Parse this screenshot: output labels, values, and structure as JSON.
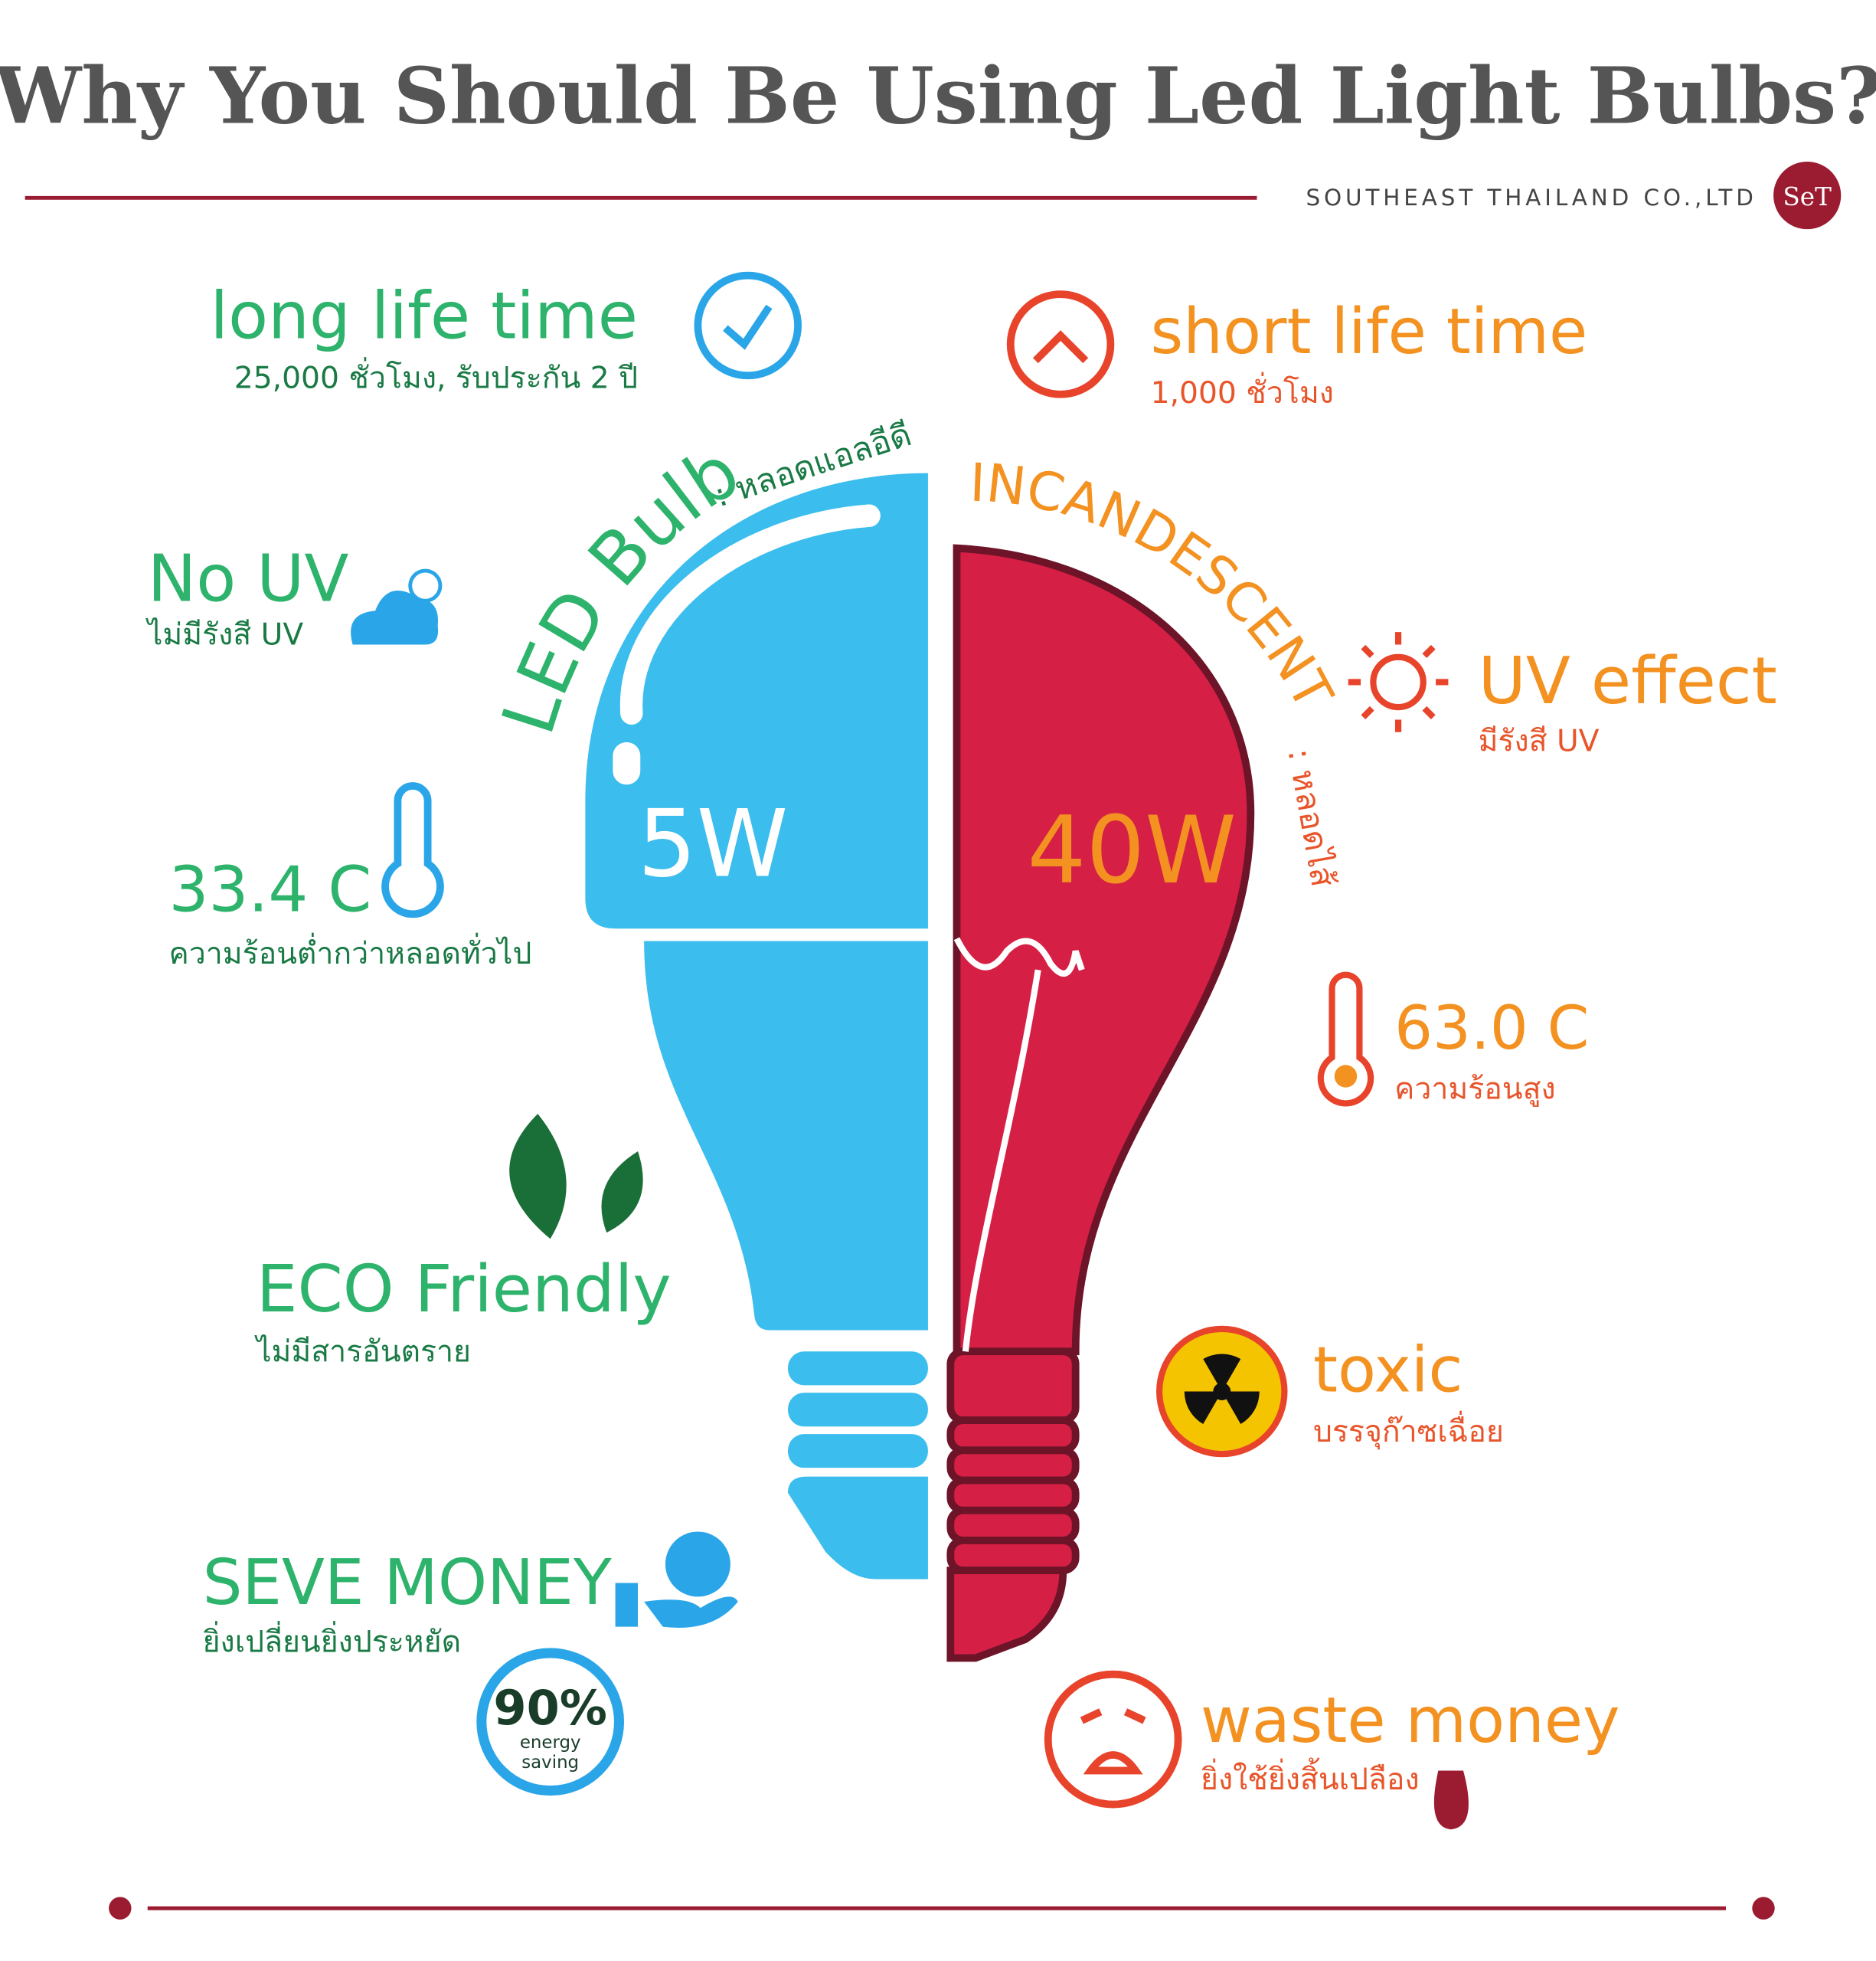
{
  "header": {
    "title": "Why You Should Be Using Led Light Bulbs?",
    "company": "SOUTHEAST THAILAND CO.,LTD",
    "logo": "SeT"
  },
  "led": {
    "label": "LED Bulb",
    "thai": ": หลอดแอลอีดี",
    "watt": "5W",
    "features": [
      {
        "title": "long life time",
        "sub": "25,000 ชั่วโมง, รับประกัน 2 ปี"
      },
      {
        "title": "No UV",
        "sub": "ไม่มีรังสี UV"
      },
      {
        "title": "33.4 C",
        "sub": "ความร้อนต่ำกว่าหลอดทั่วไป"
      },
      {
        "title": "ECO Friendly",
        "sub": "ไม่มีสารอันตราย"
      },
      {
        "title": "SEVE MONEY",
        "sub": "ยิ่งเปลี่ยนยิ่งประหยัด"
      }
    ],
    "saving": {
      "value": "90%",
      "line1": "energy",
      "line2": "saving"
    }
  },
  "incandescent": {
    "label": "INCANDESCENT",
    "thai": ": หลอดไส้",
    "watt": "40W",
    "features": [
      {
        "title": "short life time",
        "sub": "1,000 ชั่วโมง"
      },
      {
        "title": "UV effect",
        "sub": "มีรังสี UV"
      },
      {
        "title": "63.0 C",
        "sub": "ความร้อนสูง"
      },
      {
        "title": "toxic",
        "sub": "บรรจุก๊าซเฉื่อย"
      },
      {
        "title": "waste money",
        "sub": "ยิ่งใช้ยิ่งสิ้นเปลือง"
      }
    ]
  }
}
